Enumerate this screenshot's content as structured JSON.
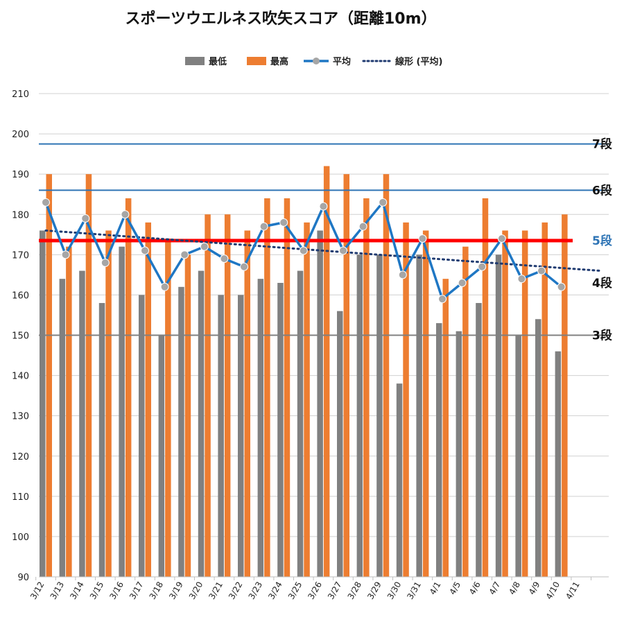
{
  "chart_data": {
    "type": "bar",
    "title": "スポーツウエルネス吹矢スコア（距離10m）",
    "categories": [
      "3/12",
      "3/13",
      "3/14",
      "3/15",
      "3/16",
      "3/17",
      "3/18",
      "3/19",
      "3/20",
      "3/21",
      "3/22",
      "3/23",
      "3/24",
      "3/25",
      "3/26",
      "3/27",
      "3/28",
      "3/29",
      "3/30",
      "3/31",
      "4/1",
      "4/5",
      "4/6",
      "4/7",
      "4/8",
      "4/9",
      "4/10",
      "4/11"
    ],
    "series": [
      {
        "name": "最低",
        "type": "bar",
        "color": "#808080",
        "values": [
          176,
          164,
          166,
          158,
          172,
          160,
          150,
          162,
          166,
          160,
          160,
          164,
          163,
          166,
          176,
          156,
          170,
          170,
          138,
          170,
          153,
          151,
          158,
          170,
          150,
          154,
          146,
          null
        ]
      },
      {
        "name": "最高",
        "type": "bar",
        "color": "#ED7D31",
        "values": [
          190,
          172,
          190,
          176,
          184,
          178,
          174,
          170,
          180,
          180,
          176,
          184,
          184,
          178,
          192,
          190,
          184,
          190,
          178,
          176,
          164,
          172,
          184,
          176,
          176,
          178,
          180,
          null
        ]
      },
      {
        "name": "平均",
        "type": "line",
        "color": "#1F77C4",
        "marker_color": "#A6A6A6",
        "values": [
          183,
          170,
          179,
          168,
          180,
          171,
          162,
          170,
          172,
          169,
          167,
          177,
          178,
          171,
          182,
          171,
          177,
          183,
          165,
          174,
          159,
          163,
          167,
          174,
          164,
          166,
          162,
          null
        ]
      },
      {
        "name": "線形 (平均)",
        "type": "trendline",
        "color": "#1F3A70",
        "style": "dotted",
        "start": 176,
        "end": 166
      }
    ],
    "ylim": [
      90,
      210
    ],
    "yticks": [
      90,
      100,
      110,
      120,
      130,
      140,
      150,
      160,
      170,
      180,
      190,
      200,
      210
    ],
    "grid": true,
    "legend_position": "top-center",
    "reference_lines": [
      {
        "label": "7段",
        "value": 197.5,
        "color": "#2E74B5",
        "label_color": "#111111"
      },
      {
        "label": "6段",
        "value": 186,
        "color": "#2E74B5",
        "label_color": "#111111"
      },
      {
        "label": "5段",
        "value": 173.5,
        "color": "#FF0000",
        "label_color": "#2E74B5"
      },
      {
        "label": "4段",
        "value": 163,
        "color": "#FFFFFF",
        "label_color": "#111111"
      },
      {
        "label": "3段",
        "value": 150,
        "color": "#808080",
        "label_color": "#111111"
      }
    ]
  }
}
